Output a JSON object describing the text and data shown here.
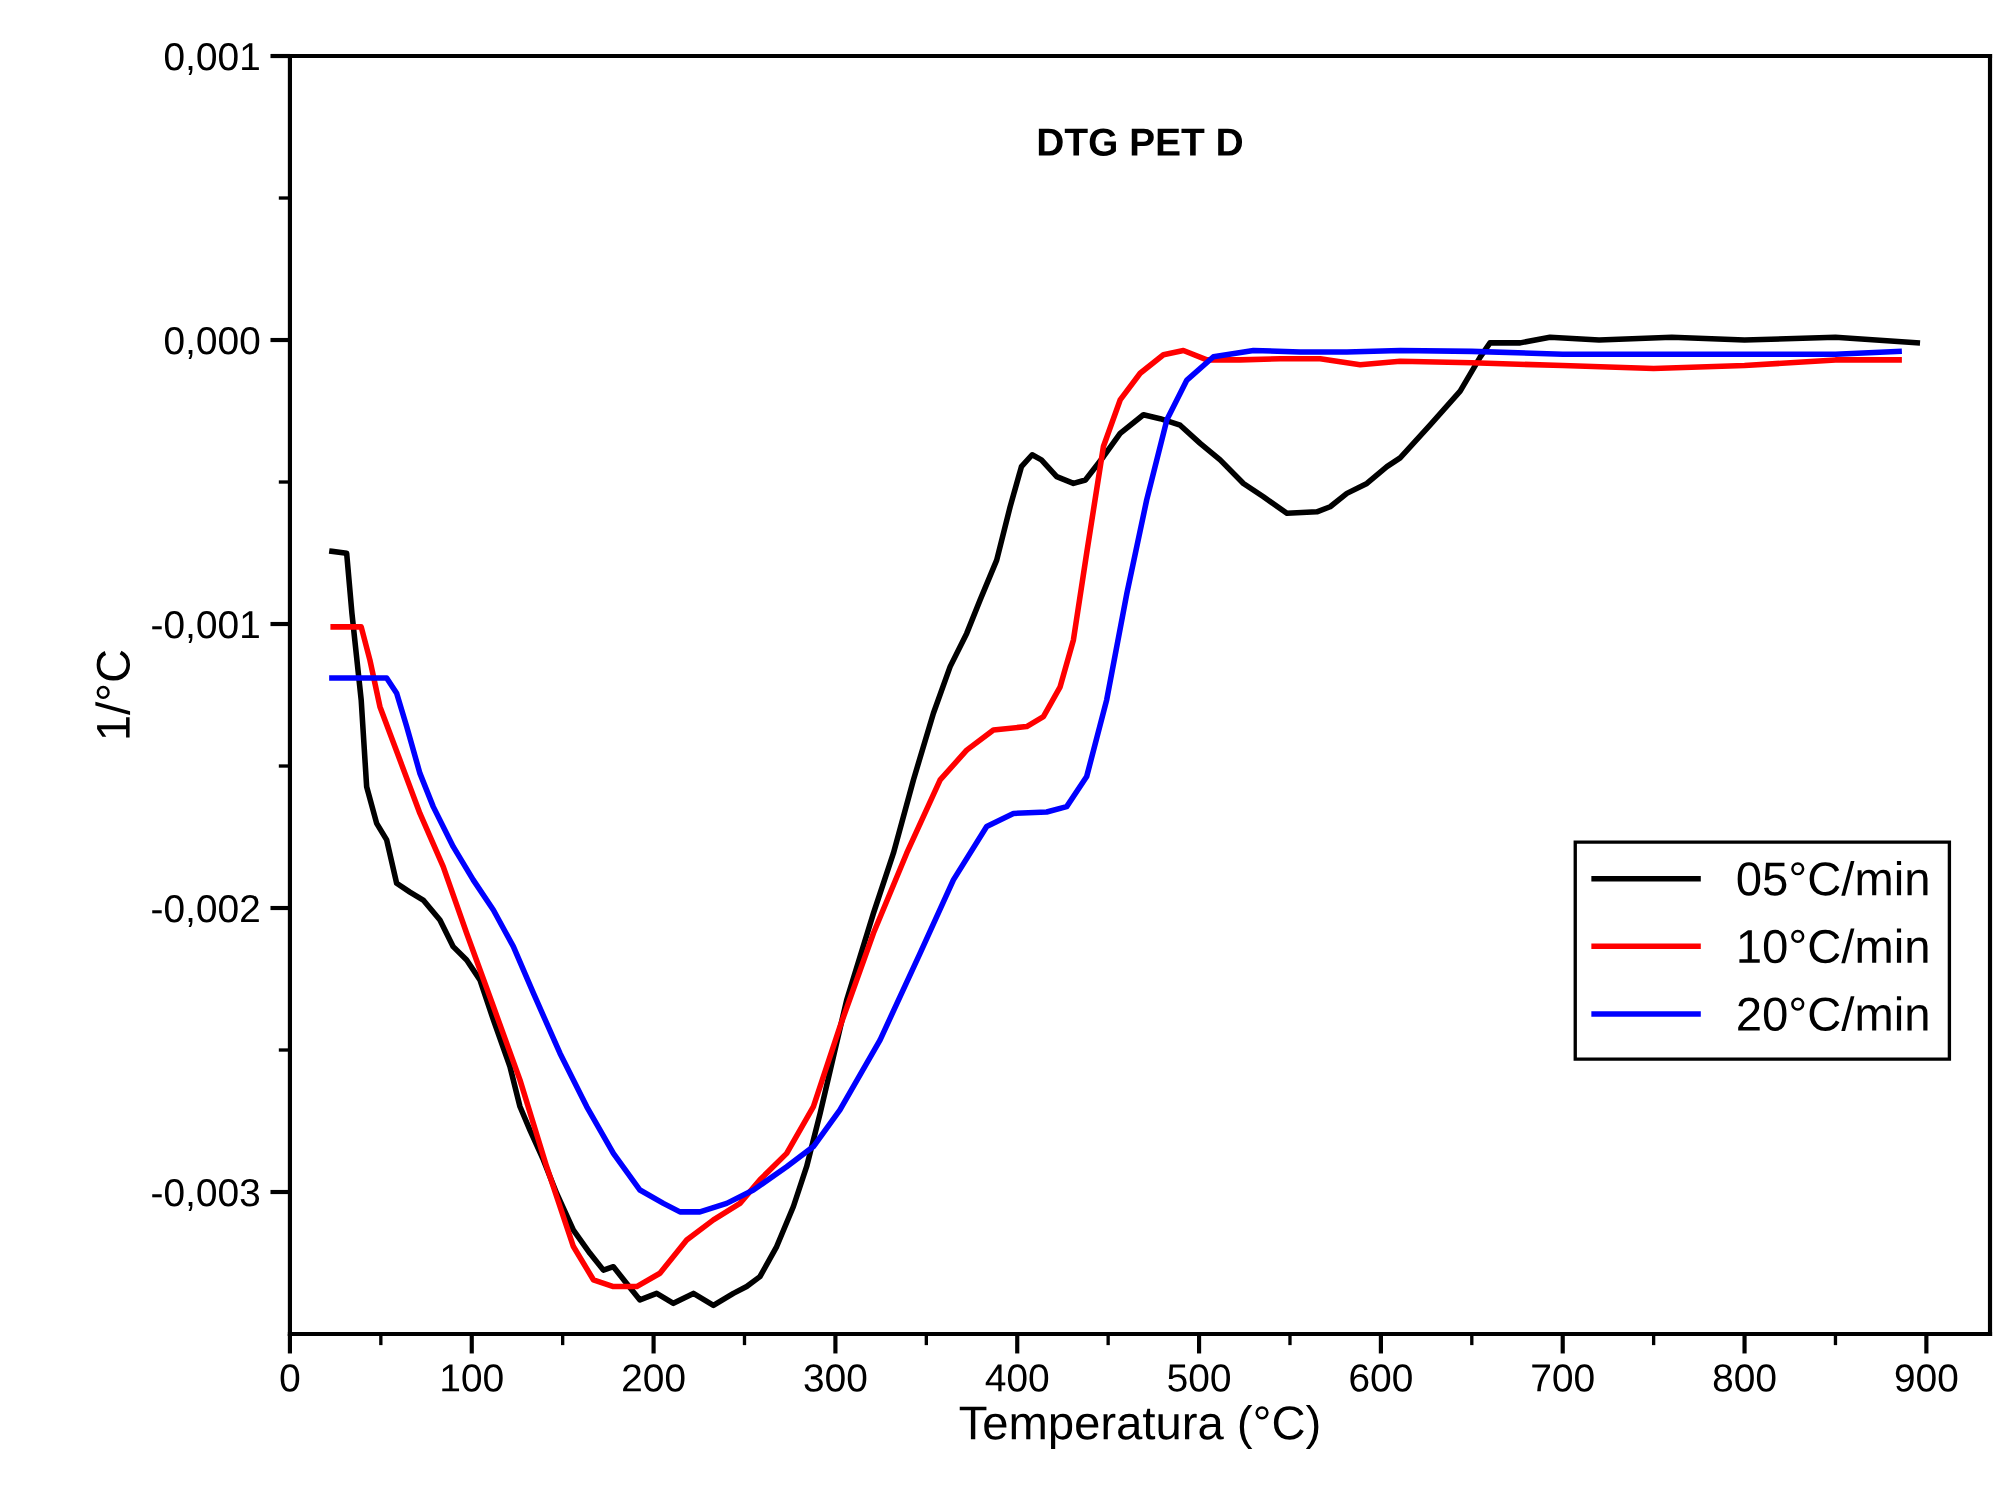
{
  "chart_data": {
    "type": "line",
    "title": "DTG PET D",
    "xlabel": "Temperatura (°C)",
    "ylabel": "1/°C",
    "xlim": [
      0,
      935
    ],
    "xticks": [
      0,
      100,
      200,
      300,
      400,
      500,
      600,
      700,
      800,
      900
    ],
    "ylim": [
      -0.0035,
      0.001
    ],
    "yticks": [
      {
        "value": -0.003,
        "label": "-0,003"
      },
      {
        "value": -0.002,
        "label": "-0,002"
      },
      {
        "value": -0.001,
        "label": "-0,001"
      },
      {
        "value": 0,
        "label": "0,000"
      },
      {
        "value": 0.001,
        "label": "0,001"
      }
    ],
    "grid": false,
    "legend": "right",
    "line_style": "solid",
    "marker": "none",
    "series": [
      {
        "name": "05°C/min",
        "color": "#000000",
        "x": [
          23.1,
          31.2,
          34.1,
          39.2,
          42.2,
          47.7,
          53.2,
          58.7,
          66,
          73.3,
          82.5,
          89.8,
          97.2,
          104.5,
          111.9,
          121,
          126.5,
          132,
          139.4,
          146.7,
          155.9,
          165,
          172.4,
          177.9,
          185.2,
          192.5,
          201.7,
          210.9,
          221.9,
          232.9,
          243.9,
          251.2,
          258.5,
          267.7,
          276.9,
          284.2,
          291.6,
          306.2,
          320.9,
          331.9,
          342.9,
          353.9,
          363.1,
          372.2,
          379.6,
          388.7,
          396.1,
          402.3,
          408.2,
          413.3,
          421.7,
          430.9,
          437.5,
          447.4,
          456.6,
          469.4,
          478.6,
          489.6,
          500.6,
          511.6,
          524.4,
          535.4,
          548.3,
          564.8,
          572.1,
          581.3,
          592.3,
          603.3,
          610.6,
          627,
          643.6,
          654.6,
          660,
          676.6,
          693,
          720,
          760,
          800,
          850,
          895
        ],
        "values": [
          -0.000744,
          -0.000751,
          -0.000962,
          -0.001268,
          -0.001573,
          -0.001702,
          -0.00176,
          -0.001913,
          -0.001944,
          -0.001972,
          -0.002042,
          -0.002136,
          -0.002183,
          -0.002253,
          -0.002394,
          -0.002558,
          -0.002699,
          -0.002782,
          -0.002887,
          -0.003005,
          -0.003134,
          -0.003216,
          -0.003275,
          -0.003263,
          -0.003322,
          -0.00338,
          -0.003357,
          -0.003392,
          -0.003357,
          -0.003399,
          -0.003357,
          -0.003333,
          -0.003298,
          -0.003192,
          -0.003051,
          -0.00291,
          -0.002723,
          -0.002324,
          -0.002019,
          -0.001807,
          -0.001549,
          -0.001314,
          -0.00115,
          -0.001033,
          -0.000915,
          -0.000775,
          -0.000587,
          -0.000446,
          -0.000404,
          -0.000422,
          -0.000481,
          -0.000505,
          -0.000493,
          -0.000411,
          -0.000329,
          -0.000263,
          -0.000277,
          -0.0003,
          -0.000364,
          -0.000422,
          -0.000505,
          -0.000552,
          -0.00061,
          -0.000605,
          -0.000587,
          -0.00054,
          -0.000505,
          -0.000446,
          -0.000415,
          -0.0003,
          -0.00018,
          -6e-05,
          -1e-05,
          -1e-05,
          1e-05,
          0.0,
          1e-05,
          0.0,
          1e-05,
          -1e-05
        ]
      },
      {
        "name": "10°C/min",
        "color": "#ff0000",
        "x": [
          23.8,
          39.2,
          44,
          49.5,
          60.5,
          71.5,
          84.3,
          97.2,
          111.9,
          126.5,
          141.2,
          155.9,
          166.9,
          177.9,
          190.7,
          203.5,
          218.2,
          232.9,
          247.5,
          258.5,
          273.2,
          287.9,
          302.5,
          320.9,
          339.2,
          357.6,
          372.2,
          386.9,
          405.2,
          414.4,
          423.6,
          430.9,
          438.2,
          447.4,
          456.6,
          467.6,
          480.4,
          491.4,
          504.3,
          522.6,
          544.6,
          566.6,
          588.6,
          610.6,
          650,
          700,
          750,
          800,
          850,
          885
        ],
        "values": [
          -0.00101,
          -0.00101,
          -0.001127,
          -0.001291,
          -0.001479,
          -0.001667,
          -0.001854,
          -0.002089,
          -0.002347,
          -0.002605,
          -0.002911,
          -0.003192,
          -0.003309,
          -0.003333,
          -0.003333,
          -0.003286,
          -0.003169,
          -0.003098,
          -0.00304,
          -0.002957,
          -0.002864,
          -0.002699,
          -0.002418,
          -0.002089,
          -0.001807,
          -0.001549,
          -0.001444,
          -0.001373,
          -0.001361,
          -0.001326,
          -0.001221,
          -0.001056,
          -0.00075,
          -0.000375,
          -0.000211,
          -0.000117,
          -5.2e-05,
          -3.7e-05,
          -7e-05,
          -7e-05,
          -6.6e-05,
          -6.6e-05,
          -8.7e-05,
          -7.5e-05,
          -8e-05,
          -9e-05,
          -0.0001,
          -9e-05,
          -7e-05,
          -7e-05
        ]
      },
      {
        "name": "20°C/min",
        "color": "#0000ff",
        "x": [
          23.1,
          53.2,
          58.7,
          64.2,
          71.5,
          78.8,
          89.8,
          100.8,
          111.9,
          122.9,
          133.9,
          148.5,
          163.2,
          177.9,
          192.5,
          205.4,
          214.5,
          225.5,
          240.2,
          254.9,
          273.2,
          287.9,
          302.5,
          324.6,
          346.6,
          364.9,
          383.2,
          397.9,
          416.2,
          427.2,
          438.2,
          449.2,
          460.3,
          471.2,
          482.3,
          493.3,
          507.9,
          529.9,
          555.6,
          581.3,
          610.6,
          650,
          700,
          750,
          800,
          850,
          885
        ],
        "values": [
          -0.00119,
          -0.00119,
          -0.001244,
          -0.001361,
          -0.001526,
          -0.001643,
          -0.001784,
          -0.001901,
          -0.002007,
          -0.002136,
          -0.0023,
          -0.002511,
          -0.002699,
          -0.002864,
          -0.002993,
          -0.00304,
          -0.00307,
          -0.00307,
          -0.00304,
          -0.002993,
          -0.002911,
          -0.00284,
          -0.002711,
          -0.002464,
          -0.002159,
          -0.001901,
          -0.001713,
          -0.001667,
          -0.001662,
          -0.001643,
          -0.001537,
          -0.001267,
          -0.000892,
          -0.000563,
          -0.000281,
          -0.000141,
          -5.9e-05,
          -3.7e-05,
          -4.2e-05,
          -4.2e-05,
          -3.7e-05,
          -4e-05,
          -5e-05,
          -5e-05,
          -5e-05,
          -5e-05,
          -4e-05
        ]
      }
    ]
  }
}
